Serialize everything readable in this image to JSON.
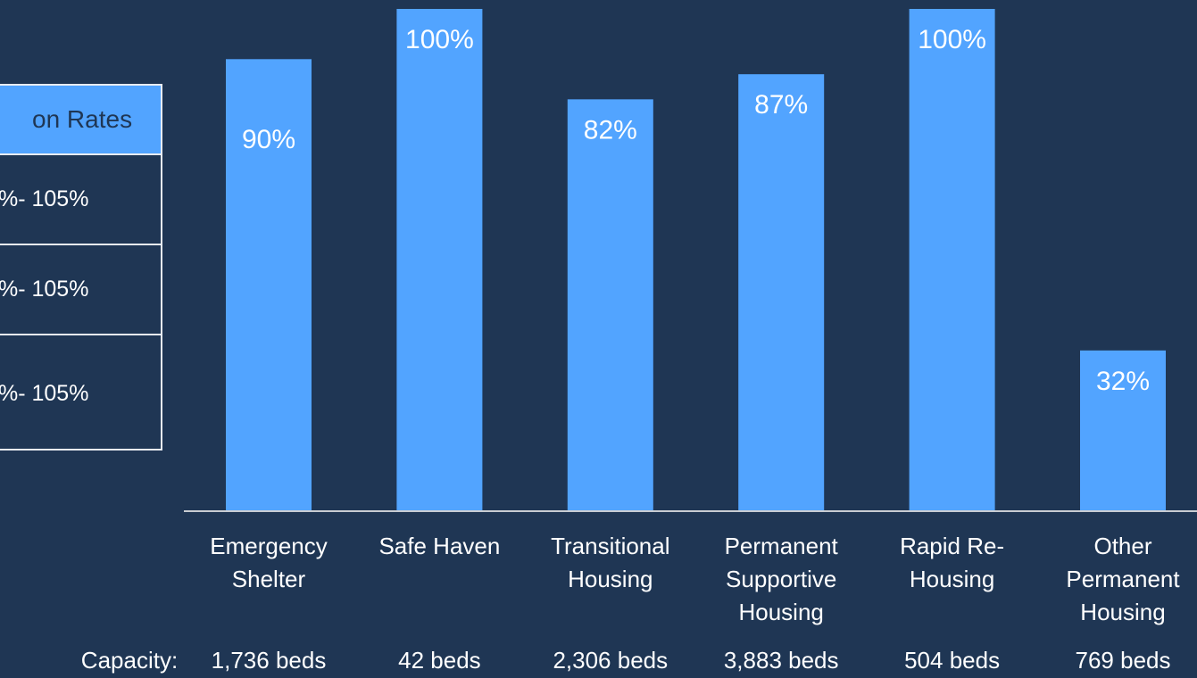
{
  "table": {
    "header": "on Rates",
    "rows": [
      "%- 105%",
      "%- 105%",
      "%- 105%"
    ]
  },
  "chart_data": {
    "type": "bar",
    "categories": [
      "Emergency Shelter",
      "Safe Haven",
      "Transitional Housing",
      "Permanent Supportive Housing",
      "Rapid Re-Housing",
      "Other Permanent Housing"
    ],
    "values": [
      90,
      100,
      82,
      87,
      100,
      32
    ],
    "value_labels": [
      "90%",
      "100%",
      "82%",
      "87%",
      "100%",
      "32%"
    ],
    "color": "#52a4ff",
    "ylim": [
      0,
      100
    ],
    "capacity_label": "Capacity:",
    "capacities": [
      "1,736 beds",
      "42 beds",
      "2,306 beds",
      "3,883 beds",
      "504 beds",
      "769 beds"
    ]
  }
}
